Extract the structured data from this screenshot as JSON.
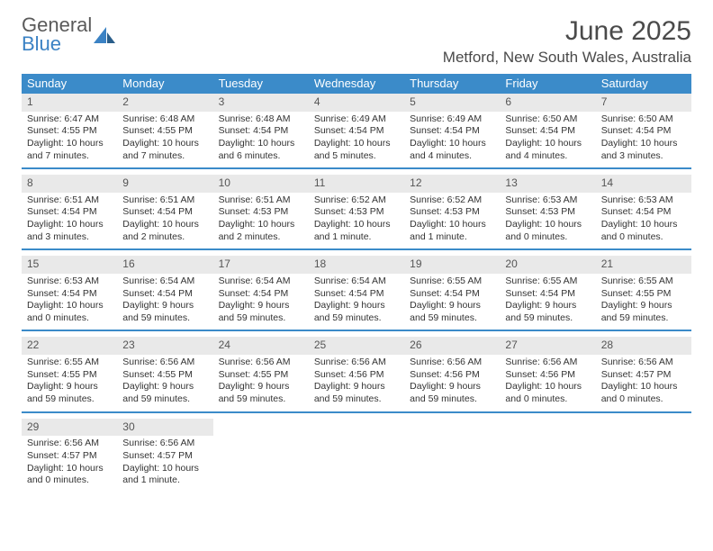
{
  "logo": {
    "line1": "General",
    "line2": "Blue"
  },
  "header": {
    "month_title": "June 2025",
    "location": "Metford, New South Wales, Australia"
  },
  "colors": {
    "header_bar": "#3b8bc9",
    "daynum_bg": "#e9e9e9",
    "week_border": "#3b8bc9",
    "text": "#333333",
    "logo_gray": "#5a5a5a",
    "logo_blue": "#3b82c4"
  },
  "weekdays": [
    "Sunday",
    "Monday",
    "Tuesday",
    "Wednesday",
    "Thursday",
    "Friday",
    "Saturday"
  ],
  "weeks": [
    [
      {
        "num": "1",
        "sunrise": "Sunrise: 6:47 AM",
        "sunset": "Sunset: 4:55 PM",
        "dl1": "Daylight: 10 hours",
        "dl2": "and 7 minutes."
      },
      {
        "num": "2",
        "sunrise": "Sunrise: 6:48 AM",
        "sunset": "Sunset: 4:55 PM",
        "dl1": "Daylight: 10 hours",
        "dl2": "and 7 minutes."
      },
      {
        "num": "3",
        "sunrise": "Sunrise: 6:48 AM",
        "sunset": "Sunset: 4:54 PM",
        "dl1": "Daylight: 10 hours",
        "dl2": "and 6 minutes."
      },
      {
        "num": "4",
        "sunrise": "Sunrise: 6:49 AM",
        "sunset": "Sunset: 4:54 PM",
        "dl1": "Daylight: 10 hours",
        "dl2": "and 5 minutes."
      },
      {
        "num": "5",
        "sunrise": "Sunrise: 6:49 AM",
        "sunset": "Sunset: 4:54 PM",
        "dl1": "Daylight: 10 hours",
        "dl2": "and 4 minutes."
      },
      {
        "num": "6",
        "sunrise": "Sunrise: 6:50 AM",
        "sunset": "Sunset: 4:54 PM",
        "dl1": "Daylight: 10 hours",
        "dl2": "and 4 minutes."
      },
      {
        "num": "7",
        "sunrise": "Sunrise: 6:50 AM",
        "sunset": "Sunset: 4:54 PM",
        "dl1": "Daylight: 10 hours",
        "dl2": "and 3 minutes."
      }
    ],
    [
      {
        "num": "8",
        "sunrise": "Sunrise: 6:51 AM",
        "sunset": "Sunset: 4:54 PM",
        "dl1": "Daylight: 10 hours",
        "dl2": "and 3 minutes."
      },
      {
        "num": "9",
        "sunrise": "Sunrise: 6:51 AM",
        "sunset": "Sunset: 4:54 PM",
        "dl1": "Daylight: 10 hours",
        "dl2": "and 2 minutes."
      },
      {
        "num": "10",
        "sunrise": "Sunrise: 6:51 AM",
        "sunset": "Sunset: 4:53 PM",
        "dl1": "Daylight: 10 hours",
        "dl2": "and 2 minutes."
      },
      {
        "num": "11",
        "sunrise": "Sunrise: 6:52 AM",
        "sunset": "Sunset: 4:53 PM",
        "dl1": "Daylight: 10 hours",
        "dl2": "and 1 minute."
      },
      {
        "num": "12",
        "sunrise": "Sunrise: 6:52 AM",
        "sunset": "Sunset: 4:53 PM",
        "dl1": "Daylight: 10 hours",
        "dl2": "and 1 minute."
      },
      {
        "num": "13",
        "sunrise": "Sunrise: 6:53 AM",
        "sunset": "Sunset: 4:53 PM",
        "dl1": "Daylight: 10 hours",
        "dl2": "and 0 minutes."
      },
      {
        "num": "14",
        "sunrise": "Sunrise: 6:53 AM",
        "sunset": "Sunset: 4:54 PM",
        "dl1": "Daylight: 10 hours",
        "dl2": "and 0 minutes."
      }
    ],
    [
      {
        "num": "15",
        "sunrise": "Sunrise: 6:53 AM",
        "sunset": "Sunset: 4:54 PM",
        "dl1": "Daylight: 10 hours",
        "dl2": "and 0 minutes."
      },
      {
        "num": "16",
        "sunrise": "Sunrise: 6:54 AM",
        "sunset": "Sunset: 4:54 PM",
        "dl1": "Daylight: 9 hours",
        "dl2": "and 59 minutes."
      },
      {
        "num": "17",
        "sunrise": "Sunrise: 6:54 AM",
        "sunset": "Sunset: 4:54 PM",
        "dl1": "Daylight: 9 hours",
        "dl2": "and 59 minutes."
      },
      {
        "num": "18",
        "sunrise": "Sunrise: 6:54 AM",
        "sunset": "Sunset: 4:54 PM",
        "dl1": "Daylight: 9 hours",
        "dl2": "and 59 minutes."
      },
      {
        "num": "19",
        "sunrise": "Sunrise: 6:55 AM",
        "sunset": "Sunset: 4:54 PM",
        "dl1": "Daylight: 9 hours",
        "dl2": "and 59 minutes."
      },
      {
        "num": "20",
        "sunrise": "Sunrise: 6:55 AM",
        "sunset": "Sunset: 4:54 PM",
        "dl1": "Daylight: 9 hours",
        "dl2": "and 59 minutes."
      },
      {
        "num": "21",
        "sunrise": "Sunrise: 6:55 AM",
        "sunset": "Sunset: 4:55 PM",
        "dl1": "Daylight: 9 hours",
        "dl2": "and 59 minutes."
      }
    ],
    [
      {
        "num": "22",
        "sunrise": "Sunrise: 6:55 AM",
        "sunset": "Sunset: 4:55 PM",
        "dl1": "Daylight: 9 hours",
        "dl2": "and 59 minutes."
      },
      {
        "num": "23",
        "sunrise": "Sunrise: 6:56 AM",
        "sunset": "Sunset: 4:55 PM",
        "dl1": "Daylight: 9 hours",
        "dl2": "and 59 minutes."
      },
      {
        "num": "24",
        "sunrise": "Sunrise: 6:56 AM",
        "sunset": "Sunset: 4:55 PM",
        "dl1": "Daylight: 9 hours",
        "dl2": "and 59 minutes."
      },
      {
        "num": "25",
        "sunrise": "Sunrise: 6:56 AM",
        "sunset": "Sunset: 4:56 PM",
        "dl1": "Daylight: 9 hours",
        "dl2": "and 59 minutes."
      },
      {
        "num": "26",
        "sunrise": "Sunrise: 6:56 AM",
        "sunset": "Sunset: 4:56 PM",
        "dl1": "Daylight: 9 hours",
        "dl2": "and 59 minutes."
      },
      {
        "num": "27",
        "sunrise": "Sunrise: 6:56 AM",
        "sunset": "Sunset: 4:56 PM",
        "dl1": "Daylight: 10 hours",
        "dl2": "and 0 minutes."
      },
      {
        "num": "28",
        "sunrise": "Sunrise: 6:56 AM",
        "sunset": "Sunset: 4:57 PM",
        "dl1": "Daylight: 10 hours",
        "dl2": "and 0 minutes."
      }
    ],
    [
      {
        "num": "29",
        "sunrise": "Sunrise: 6:56 AM",
        "sunset": "Sunset: 4:57 PM",
        "dl1": "Daylight: 10 hours",
        "dl2": "and 0 minutes."
      },
      {
        "num": "30",
        "sunrise": "Sunrise: 6:56 AM",
        "sunset": "Sunset: 4:57 PM",
        "dl1": "Daylight: 10 hours",
        "dl2": "and 1 minute."
      },
      null,
      null,
      null,
      null,
      null
    ]
  ]
}
